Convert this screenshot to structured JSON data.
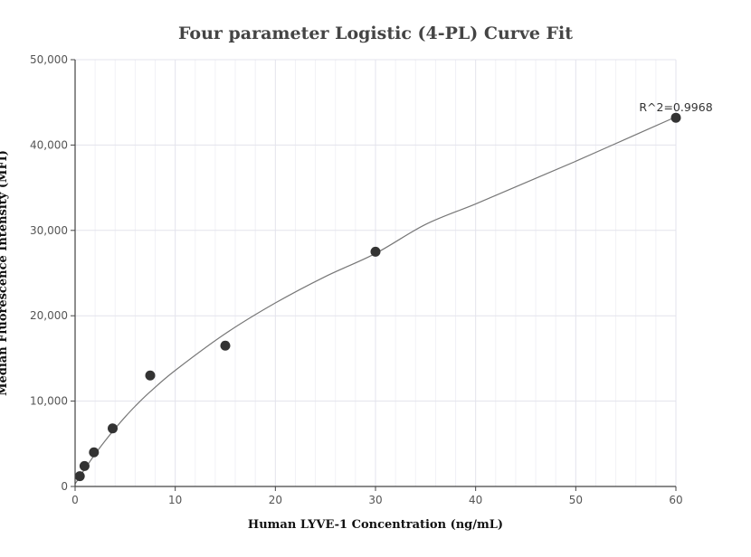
{
  "chart_data": {
    "type": "scatter",
    "title": "Four parameter Logistic (4-PL) Curve Fit",
    "xlabel": "Human LYVE-1 Concentration (ng/mL)",
    "ylabel": "Median Fluorescence Intensity (MFI)",
    "xlim": [
      0,
      60
    ],
    "ylim": [
      0,
      50000
    ],
    "x_ticks": [
      0,
      10,
      20,
      30,
      40,
      50,
      60
    ],
    "y_ticks": [
      0,
      10000,
      20000,
      30000,
      40000,
      50000
    ],
    "x_tick_labels": [
      "0",
      "10",
      "20",
      "30",
      "40",
      "50",
      "60"
    ],
    "y_tick_labels": [
      "0",
      "10,000",
      "20,000",
      "30,000",
      "40,000",
      "50,000"
    ],
    "grid": true,
    "series": [
      {
        "x": [
          0.47,
          0.94,
          1.88,
          3.75,
          7.5,
          15,
          30,
          60
        ],
        "y": [
          1200,
          2400,
          4000,
          6800,
          13000,
          16500,
          27500,
          43200
        ]
      }
    ],
    "fit_curve": {
      "model": "4-PL",
      "x": [
        0,
        0.5,
        1,
        2,
        3,
        4,
        5,
        6,
        7.5,
        10,
        15,
        20,
        25,
        30,
        35,
        40,
        45,
        50,
        55,
        60
      ],
      "y": [
        300,
        1200,
        2100,
        3800,
        5350,
        6800,
        8150,
        9400,
        11100,
        13600,
        17900,
        21500,
        24600,
        27300,
        30700,
        33100,
        35600,
        38100,
        40700,
        43300
      ]
    },
    "annotations": [
      {
        "text": "R^2=0.9968"
      }
    ],
    "colors": {
      "point": "#333333",
      "curve": "#777777",
      "grid_major": "#e3e3ec",
      "grid_minor": "#f1f1f6",
      "axis": "#444444"
    }
  }
}
